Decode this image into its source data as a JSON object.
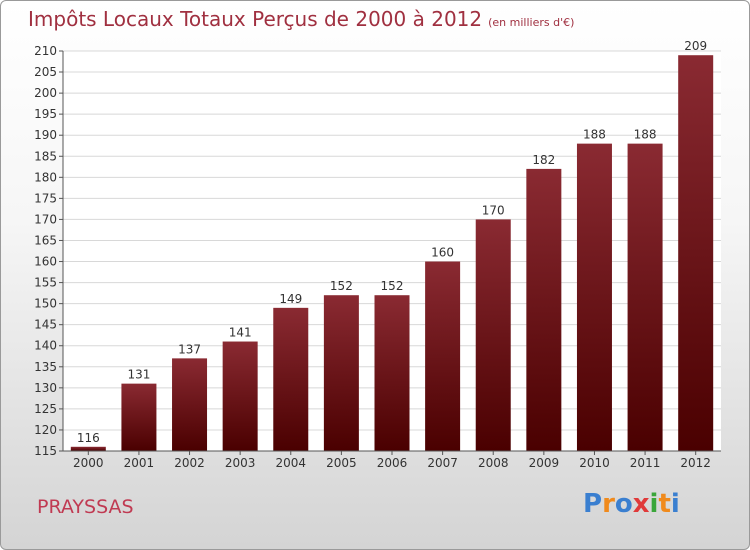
{
  "title": "Impôts Locaux Totaux Perçus de 2000 à 2012",
  "unit_note": "(en milliers d'€)",
  "city": "PRAYSSAS",
  "logo": {
    "text": "Proxiti",
    "colors": [
      "#3a7fd0",
      "#f08a1c",
      "#3a7fd0",
      "#e03a3a",
      "#3aa63a",
      "#f08a1c",
      "#3a7fd0"
    ]
  },
  "chart_data": {
    "type": "bar",
    "title": "Impôts Locaux Totaux Perçus de 2000 à 2012",
    "xlabel": "",
    "ylabel": "",
    "categories": [
      "2000",
      "2001",
      "2002",
      "2003",
      "2004",
      "2005",
      "2006",
      "2007",
      "2008",
      "2009",
      "2010",
      "2011",
      "2012"
    ],
    "values": [
      116,
      131,
      137,
      141,
      149,
      152,
      152,
      160,
      170,
      182,
      188,
      188,
      209
    ],
    "ylim": [
      115,
      210
    ],
    "yticks": [
      115,
      120,
      125,
      130,
      135,
      140,
      145,
      150,
      155,
      160,
      165,
      170,
      175,
      180,
      185,
      190,
      195,
      200,
      205,
      210
    ],
    "grid": true,
    "bar_color_top": "#8a2a32",
    "bar_color_bottom": "#4a0000"
  }
}
